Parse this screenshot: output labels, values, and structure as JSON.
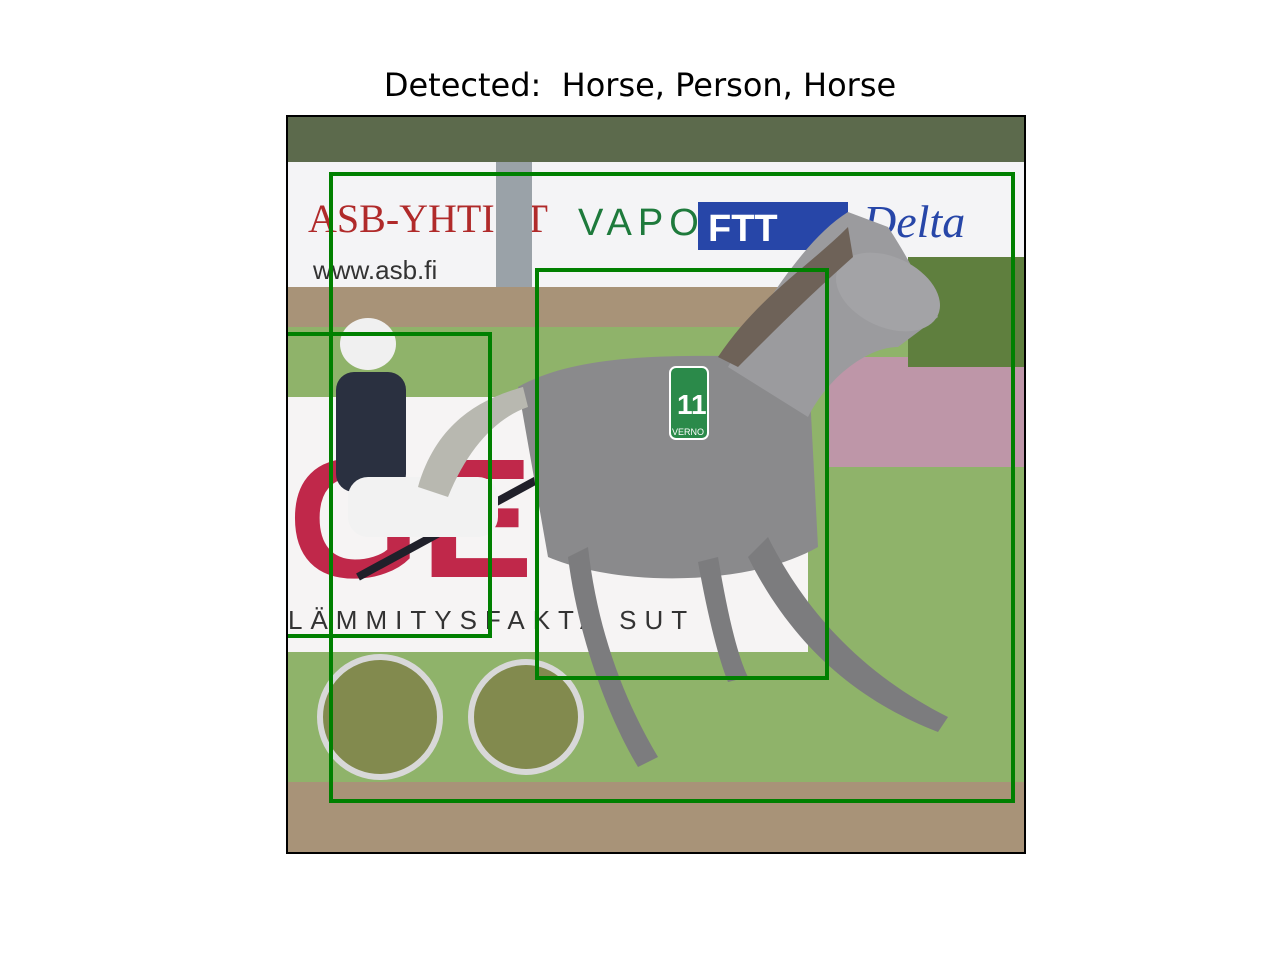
{
  "figure": {
    "title_prefix": "Detected:",
    "title_separator": "  ",
    "detections": [
      {
        "label": "Horse",
        "color": "#008000"
      },
      {
        "label": "Person",
        "color": "#008000"
      },
      {
        "label": "Horse",
        "color": "#008000"
      }
    ]
  },
  "scene": {
    "banners": {
      "asb_top": "ASB-YHTIÖT",
      "asb_url": "www.asb.fi",
      "vapo": "VAPO",
      "delta": "Delta",
      "ftt": "FTT",
      "board_big": "GE",
      "board_small": "LÄMMITYSFAKTA SUT"
    },
    "saddle_pad_number": "11",
    "saddle_pad_text": "VERNO"
  },
  "colors": {
    "box": "#008000",
    "grass": "#8fb36a",
    "track": "#a89378",
    "banner": "#f4f4f6",
    "horse": "#8a8a8c",
    "flowers": "#c98fb8",
    "trees": "#5c6a4c"
  }
}
